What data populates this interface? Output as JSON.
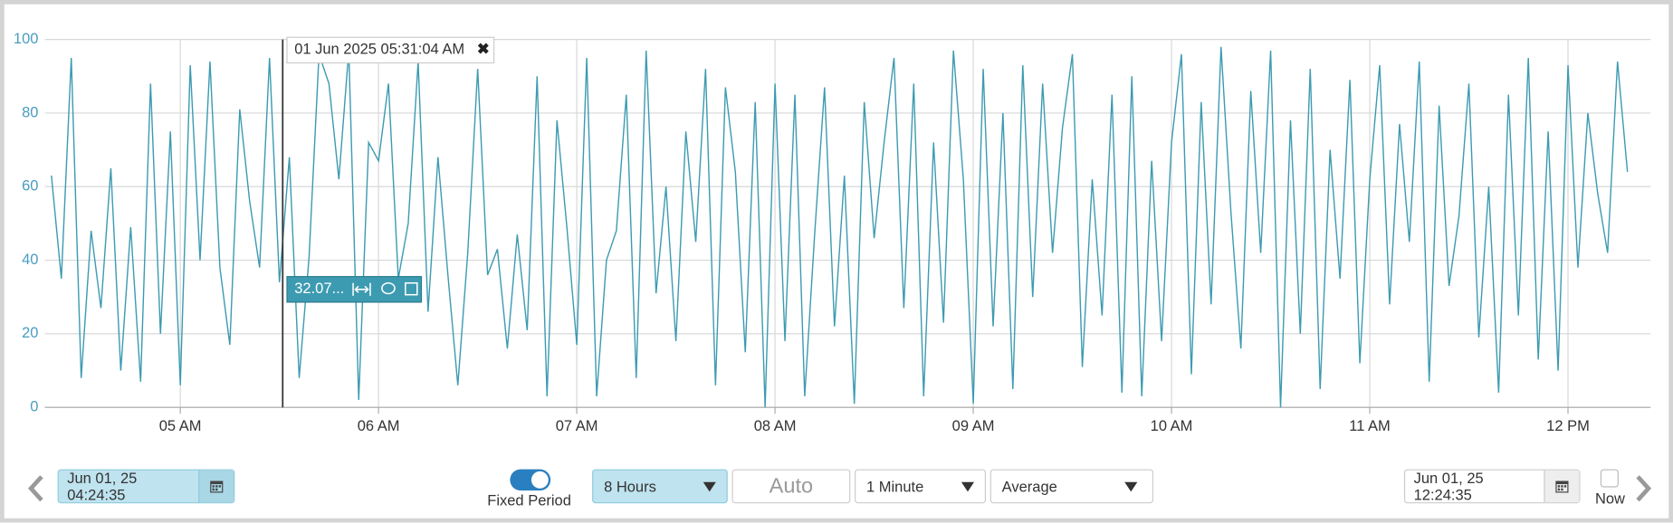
{
  "chart_data": {
    "type": "line",
    "color": "#3d9bb1",
    "x": [
      "04:21",
      "04:24",
      "04:27",
      "04:30",
      "04:33",
      "04:36",
      "04:39",
      "04:42",
      "04:45",
      "04:48",
      "04:51",
      "04:54",
      "04:57",
      "05:00",
      "05:03",
      "05:06",
      "05:09",
      "05:12",
      "05:15",
      "05:18",
      "05:21",
      "05:24",
      "05:27",
      "05:30",
      "05:33",
      "05:36",
      "05:39",
      "05:42",
      "05:45",
      "05:48",
      "05:51",
      "05:54",
      "05:57",
      "06:00",
      "06:03",
      "06:06",
      "06:09",
      "06:12",
      "06:15",
      "06:18",
      "06:21",
      "06:24",
      "06:27",
      "06:30",
      "06:33",
      "06:36",
      "06:39",
      "06:42",
      "06:45",
      "06:48",
      "06:51",
      "06:54",
      "06:57",
      "07:00",
      "07:03",
      "07:06",
      "07:09",
      "07:12",
      "07:15",
      "07:18",
      "07:21",
      "07:24",
      "07:27",
      "07:30",
      "07:33",
      "07:36",
      "07:39",
      "07:42",
      "07:45",
      "07:48",
      "07:51",
      "07:54",
      "07:57",
      "08:00",
      "08:03",
      "08:06",
      "08:09",
      "08:12",
      "08:15",
      "08:18",
      "08:21",
      "08:24",
      "08:27",
      "08:30",
      "08:33",
      "08:36",
      "08:39",
      "08:42",
      "08:45",
      "08:48",
      "08:51",
      "08:54",
      "08:57",
      "09:00",
      "09:03",
      "09:06",
      "09:09",
      "09:12",
      "09:15",
      "09:18",
      "09:21",
      "09:24",
      "09:27",
      "09:30",
      "09:33",
      "09:36",
      "09:39",
      "09:42",
      "09:45",
      "09:48",
      "09:51",
      "09:54",
      "09:57",
      "10:00",
      "10:03",
      "10:06",
      "10:09",
      "10:12",
      "10:15",
      "10:18",
      "10:21",
      "10:24",
      "10:27",
      "10:30",
      "10:33",
      "10:36",
      "10:39",
      "10:42",
      "10:45",
      "10:48",
      "10:51",
      "10:54",
      "10:57",
      "11:00",
      "11:03",
      "11:06",
      "11:09",
      "11:12",
      "11:15",
      "11:18",
      "11:21",
      "11:24",
      "11:27",
      "11:30",
      "11:33",
      "11:36",
      "11:39",
      "11:42",
      "11:45",
      "11:48",
      "11:51",
      "11:54",
      "11:57",
      "12:00",
      "12:03",
      "12:06",
      "12:09",
      "12:12",
      "12:15",
      "12:18"
    ],
    "values": [
      63,
      35,
      95,
      8,
      48,
      27,
      65,
      10,
      49,
      7,
      88,
      20,
      75,
      6,
      93,
      40,
      94,
      38,
      17,
      81,
      56,
      38,
      95,
      34,
      68,
      8,
      41,
      96,
      88,
      62,
      97,
      2,
      72,
      67,
      88,
      35,
      50,
      94,
      26,
      68,
      36,
      6,
      42,
      92,
      36,
      43,
      16,
      47,
      21,
      90,
      3,
      78,
      49,
      17,
      95,
      3,
      40,
      48,
      85,
      8,
      97,
      31,
      60,
      18,
      75,
      45,
      92,
      6,
      87,
      64,
      15,
      83,
      0,
      88,
      18,
      85,
      3,
      47,
      87,
      22,
      63,
      1,
      83,
      46,
      72,
      95,
      27,
      88,
      3,
      72,
      23,
      97,
      62,
      1,
      92,
      22,
      80,
      5,
      93,
      30,
      88,
      42,
      76,
      96,
      11,
      62,
      25,
      85,
      4,
      90,
      3,
      67,
      18,
      72,
      96,
      9,
      83,
      28,
      98,
      53,
      16,
      86,
      42,
      97,
      0,
      78,
      20,
      92,
      5,
      70,
      35,
      89,
      12,
      62,
      93,
      28,
      77,
      45,
      94,
      7,
      82,
      33,
      52,
      88,
      19,
      60,
      4,
      85,
      25,
      95,
      13,
      75,
      10,
      93,
      38,
      80,
      58,
      42,
      94,
      64
    ],
    "xlim": [
      "04:19",
      "12:25"
    ],
    "xticks": [
      {
        "value": "05:00",
        "label": "05 AM"
      },
      {
        "value": "06:00",
        "label": "06 AM"
      },
      {
        "value": "07:00",
        "label": "07 AM"
      },
      {
        "value": "08:00",
        "label": "08 AM"
      },
      {
        "value": "09:00",
        "label": "09 AM"
      },
      {
        "value": "10:00",
        "label": "10 AM"
      },
      {
        "value": "11:00",
        "label": "11 AM"
      },
      {
        "value": "12:00",
        "label": "12 PM"
      }
    ],
    "ylim": [
      0,
      100
    ],
    "yticks": [
      0,
      20,
      40,
      60,
      80,
      100
    ],
    "grid": true,
    "cursor": {
      "x": "05:31",
      "label": "01 Jun 2025 05:31:04 AM",
      "value": 32.07,
      "value_label": "32.07..."
    }
  },
  "controls": {
    "start": "Jun 01, 25 04:24:35",
    "fixed_period": "Fixed Period",
    "period": "8 Hours",
    "auto": "Auto",
    "interval": "1 Minute",
    "aggregate": "Average",
    "end": "Jun 01, 25 12:24:35",
    "now": "Now"
  }
}
